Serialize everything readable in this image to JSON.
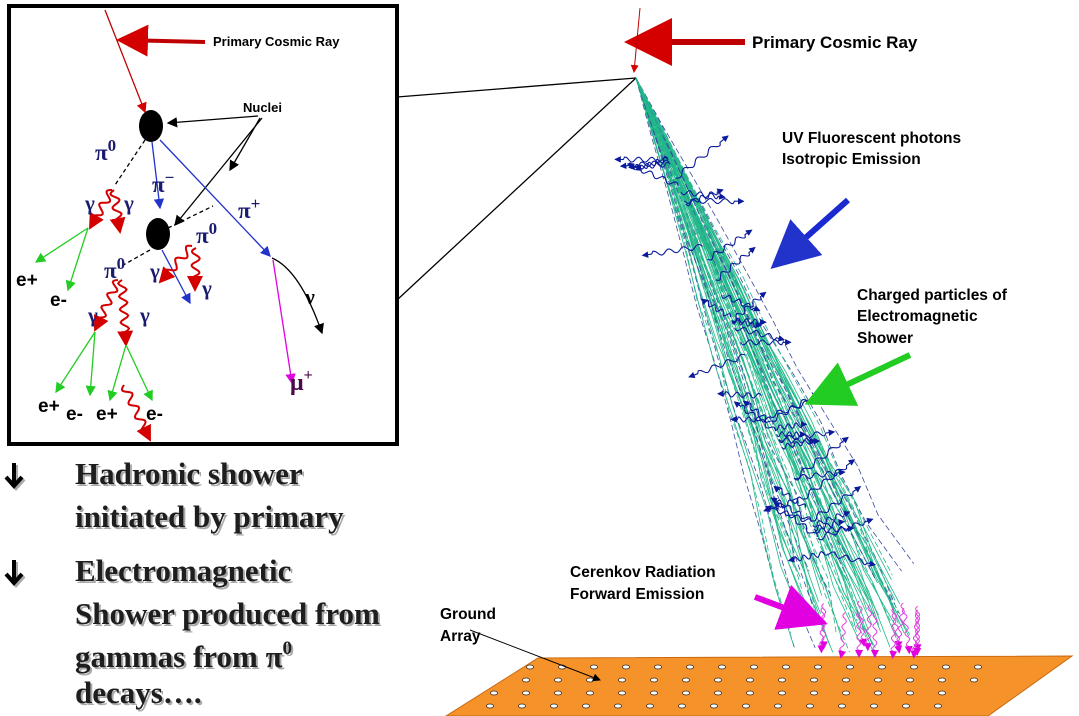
{
  "inset": {
    "primary_label": "Primary Cosmic Ray",
    "nuclei_label": "Nuclei",
    "pions": [
      {
        "symbol": "π",
        "sup": "0"
      },
      {
        "symbol": "π",
        "sup": "−"
      },
      {
        "symbol": "π",
        "sup": "+"
      },
      {
        "symbol": "π",
        "sup": "0"
      },
      {
        "symbol": "π",
        "sup": "0"
      }
    ],
    "gammas": [
      "γ",
      "γ",
      "γ",
      "γ",
      "γ",
      "γ"
    ],
    "leptons": [
      "e+",
      "e-",
      "e+",
      "e-",
      "e+",
      "e-"
    ],
    "neutrino": "ν",
    "muon": {
      "symbol": "μ",
      "sup": "+"
    }
  },
  "shower": {
    "primary_label": "Primary Cosmic Ray",
    "uv_label": [
      "UV Fluorescent photons",
      "Isotropic Emission"
    ],
    "charged_label": [
      "Charged particles of",
      "Electromagnetic",
      "Shower"
    ],
    "cerenkov_label": [
      "Cerenkov Radiation",
      "Forward Emission"
    ],
    "ground_label": [
      "Ground",
      "Array"
    ]
  },
  "bullets": [
    {
      "lines": [
        "Hadronic shower",
        "initiated by primary"
      ]
    },
    {
      "lines": [
        "Electromagnetic",
        "Shower produced from",
        "gammas from",
        "decays…."
      ],
      "symbol": "π",
      "sup": "0"
    }
  ]
}
